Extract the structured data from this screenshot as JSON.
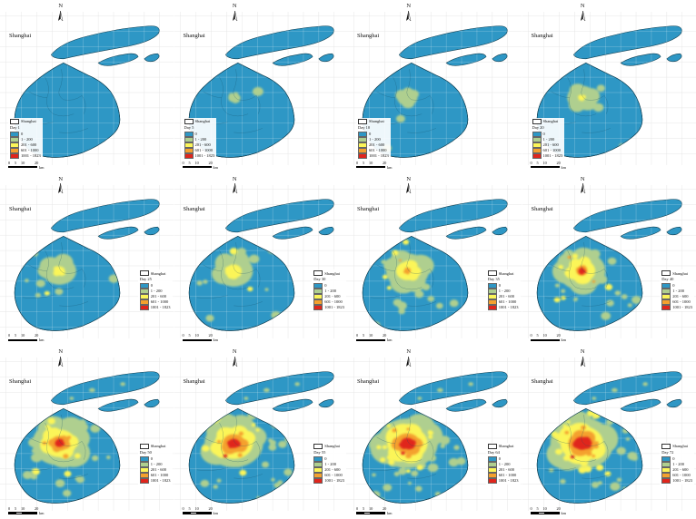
{
  "figure": {
    "region_label": "Shanghai",
    "north_label": "N"
  },
  "legend": {
    "boundary_label": "Shanghai",
    "classes": [
      {
        "label": "0",
        "color": "#2E97C5"
      },
      {
        "label": "1 - 200",
        "color": "#AFCF8F"
      },
      {
        "label": "201 - 600",
        "color": "#FBF559"
      },
      {
        "label": "601 - 1000",
        "color": "#F4A12E"
      },
      {
        "label": "1001 - 1823",
        "color": "#E0251C"
      }
    ]
  },
  "scalebar": {
    "ticks": [
      "0",
      "5",
      "10",
      "20"
    ],
    "unit": "km"
  },
  "panels": [
    {
      "day": "Day 1"
    },
    {
      "day": "Day 5"
    },
    {
      "day": "Day 10"
    },
    {
      "day": "Day 20"
    },
    {
      "day": "Day 25"
    },
    {
      "day": "Day 30"
    },
    {
      "day": "Day 35"
    },
    {
      "day": "Day 40"
    },
    {
      "day": "Day 50"
    },
    {
      "day": "Day 55"
    },
    {
      "day": "Day 64"
    },
    {
      "day": "Day 72"
    }
  ]
}
